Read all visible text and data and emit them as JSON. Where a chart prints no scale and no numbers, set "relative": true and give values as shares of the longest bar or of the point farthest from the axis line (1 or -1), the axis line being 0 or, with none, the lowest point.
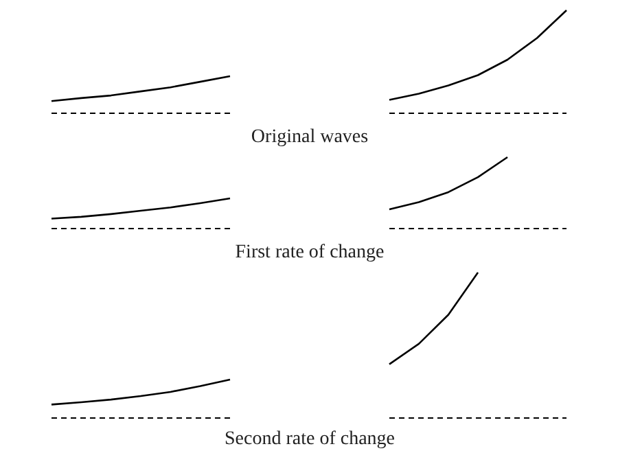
{
  "chart_data": [
    {
      "type": "line",
      "relative": true,
      "categories": [
        null,
        null,
        null,
        null,
        null,
        null,
        null
      ],
      "grid": false,
      "marker": "none",
      "line_style": "solid",
      "series": [
        {
          "color": "#000000",
          "values": [
            0.33,
            0.41,
            0.48,
            0.59,
            0.7,
            0.85,
            1
          ]
        }
      ]
    },
    {
      "type": "line",
      "relative": true,
      "categories": [
        null,
        null,
        null,
        null,
        null,
        null,
        null
      ],
      "grid": false,
      "marker": "none",
      "line_style": "solid",
      "series": [
        {
          "color": "#000000",
          "values": [
            0.13,
            0.19,
            0.27,
            0.37,
            0.52,
            0.73,
            1
          ]
        }
      ]
    },
    {
      "type": "other",
      "title": "Original waves"
    },
    {
      "type": "line",
      "relative": true,
      "categories": [
        null,
        null,
        null,
        null,
        null,
        null,
        null
      ],
      "grid": false,
      "marker": "none",
      "line_style": "solid",
      "series": [
        {
          "color": "#000000",
          "values": [
            0.33,
            0.39,
            0.48,
            0.59,
            0.7,
            0.84,
            1
          ]
        }
      ]
    },
    {
      "type": "line",
      "relative": true,
      "categories": [
        null,
        null,
        null,
        null,
        null,
        null,
        null
      ],
      "grid": false,
      "marker": "none",
      "line_style": "solid",
      "series": [
        {
          "color": "#000000",
          "values": [
            0.27,
            0.37,
            0.51,
            0.72,
            1,
            null,
            null
          ]
        }
      ]
    },
    {
      "type": "other",
      "title": "First rate of change"
    },
    {
      "type": "line",
      "relative": true,
      "categories": [
        null,
        null,
        null,
        null,
        null,
        null,
        null
      ],
      "grid": false,
      "marker": "none",
      "line_style": "solid",
      "series": [
        {
          "color": "#000000",
          "values": [
            0.35,
            0.41,
            0.48,
            0.57,
            0.68,
            0.83,
            1
          ]
        }
      ]
    },
    {
      "type": "line",
      "relative": true,
      "categories": [
        null,
        null,
        null,
        null,
        null,
        null,
        null
      ],
      "grid": false,
      "marker": "none",
      "line_style": "solid",
      "series": [
        {
          "color": "#000000",
          "values": [
            0.37,
            0.51,
            0.71,
            1,
            null,
            null,
            null
          ]
        }
      ]
    },
    {
      "type": "other",
      "title": "Second rate of change"
    }
  ]
}
